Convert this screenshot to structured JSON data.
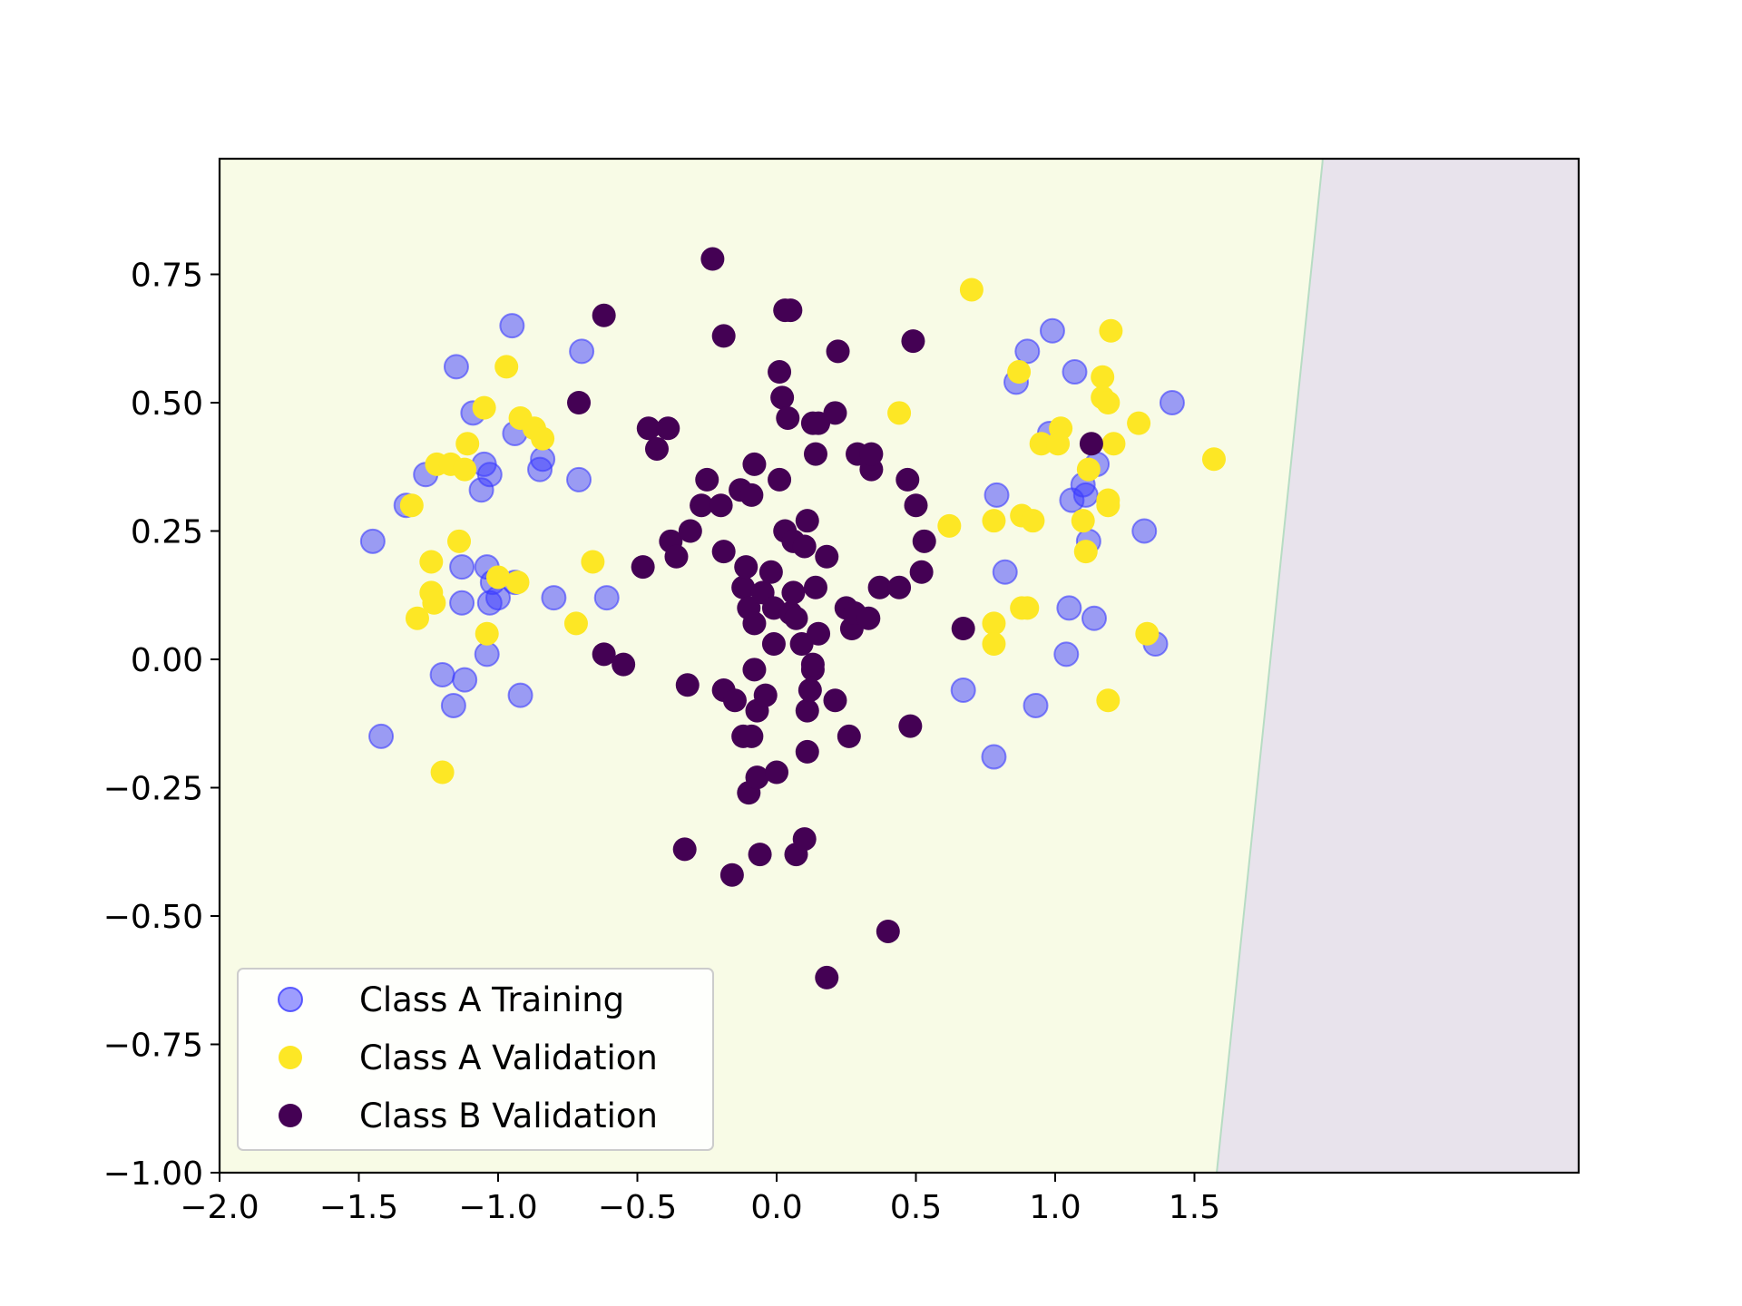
{
  "colors": {
    "class_a_training": "#3b3bff",
    "class_a_validation": "#fde725",
    "class_b_validation": "#440154",
    "region_a": "#f8fbe6",
    "region_b": "#e8e3ec",
    "boundary": "#b7dcc4"
  },
  "chart_data": {
    "type": "scatter",
    "title": "",
    "xlabel": "",
    "ylabel": "",
    "xlim": [
      -2.0,
      2.0
    ],
    "ylim": [
      -1.0,
      1.0
    ],
    "xticks": [
      -2.0,
      -1.5,
      -1.0,
      -0.5,
      0.0,
      0.5,
      1.0,
      1.5
    ],
    "xtick_labels": [
      "−2.0",
      "−1.5",
      "−1.0",
      "−0.5",
      "0.0",
      "0.5",
      "1.0",
      "1.5"
    ],
    "yticks": [
      0.75,
      0.5,
      0.25,
      0.0,
      -0.25,
      -0.5,
      -0.75,
      -1.0
    ],
    "ytick_labels": [
      "0.75",
      "0.50",
      "0.25",
      "0.00",
      "−0.25",
      "−0.50",
      "−0.75",
      "−1.00"
    ],
    "grid": false,
    "legend_position": "lower-left",
    "decision_boundary": {
      "points": [
        [
          1.96,
          0.97
        ],
        [
          1.58,
          -1.0
        ]
      ]
    },
    "series": [
      {
        "name": "Class A Training",
        "color": "#3b3bff",
        "marker": "circle-translucent",
        "points": [
          [
            -1.45,
            0.23
          ],
          [
            -1.42,
            -0.15
          ],
          [
            -1.33,
            0.3
          ],
          [
            -1.26,
            0.36
          ],
          [
            -1.2,
            -0.03
          ],
          [
            -1.16,
            -0.09
          ],
          [
            -1.15,
            0.57
          ],
          [
            -1.13,
            0.11
          ],
          [
            -1.13,
            0.18
          ],
          [
            -1.12,
            -0.04
          ],
          [
            -1.09,
            0.48
          ],
          [
            -1.06,
            0.33
          ],
          [
            -1.05,
            0.38
          ],
          [
            -1.04,
            0.18
          ],
          [
            -1.04,
            0.01
          ],
          [
            -1.03,
            0.11
          ],
          [
            -1.03,
            0.36
          ],
          [
            -1.02,
            0.15
          ],
          [
            -1.0,
            0.12
          ],
          [
            -0.95,
            0.65
          ],
          [
            -0.94,
            0.44
          ],
          [
            -0.94,
            0.15
          ],
          [
            -0.92,
            -0.07
          ],
          [
            -0.85,
            0.37
          ],
          [
            -0.84,
            0.39
          ],
          [
            -0.8,
            0.12
          ],
          [
            -0.71,
            0.35
          ],
          [
            -0.7,
            0.6
          ],
          [
            -0.61,
            0.12
          ],
          [
            0.67,
            -0.06
          ],
          [
            0.78,
            -0.19
          ],
          [
            0.79,
            0.32
          ],
          [
            0.82,
            0.17
          ],
          [
            0.86,
            0.54
          ],
          [
            0.9,
            0.6
          ],
          [
            0.93,
            -0.09
          ],
          [
            0.98,
            0.44
          ],
          [
            0.99,
            0.64
          ],
          [
            1.04,
            0.01
          ],
          [
            1.05,
            0.1
          ],
          [
            1.06,
            0.31
          ],
          [
            1.07,
            0.56
          ],
          [
            1.1,
            0.34
          ],
          [
            1.11,
            0.32
          ],
          [
            1.12,
            0.23
          ],
          [
            1.14,
            0.08
          ],
          [
            1.15,
            0.38
          ],
          [
            1.32,
            0.25
          ],
          [
            1.36,
            0.03
          ],
          [
            1.42,
            0.5
          ]
        ]
      },
      {
        "name": "Class A Validation",
        "color": "#fde725",
        "marker": "circle",
        "points": [
          [
            -1.31,
            0.3
          ],
          [
            -1.29,
            0.08
          ],
          [
            -1.24,
            0.19
          ],
          [
            -1.24,
            0.13
          ],
          [
            -1.23,
            0.11
          ],
          [
            -1.22,
            0.38
          ],
          [
            -1.2,
            -0.22
          ],
          [
            -1.17,
            0.38
          ],
          [
            -1.14,
            0.23
          ],
          [
            -1.12,
            0.37
          ],
          [
            -1.11,
            0.42
          ],
          [
            -1.05,
            0.49
          ],
          [
            -1.04,
            0.05
          ],
          [
            -1.0,
            0.16
          ],
          [
            -0.97,
            0.57
          ],
          [
            -0.93,
            0.15
          ],
          [
            -0.92,
            0.47
          ],
          [
            -0.87,
            0.45
          ],
          [
            -0.84,
            0.43
          ],
          [
            -0.72,
            0.07
          ],
          [
            -0.66,
            0.19
          ],
          [
            0.44,
            0.48
          ],
          [
            0.62,
            0.26
          ],
          [
            0.7,
            0.72
          ],
          [
            0.78,
            0.27
          ],
          [
            0.78,
            0.07
          ],
          [
            0.78,
            0.03
          ],
          [
            0.87,
            0.56
          ],
          [
            0.88,
            0.28
          ],
          [
            0.88,
            0.1
          ],
          [
            0.9,
            0.1
          ],
          [
            0.92,
            0.27
          ],
          [
            0.95,
            0.42
          ],
          [
            1.01,
            0.42
          ],
          [
            1.02,
            0.45
          ],
          [
            1.1,
            0.27
          ],
          [
            1.11,
            0.21
          ],
          [
            1.12,
            0.37
          ],
          [
            1.17,
            0.55
          ],
          [
            1.17,
            0.51
          ],
          [
            1.19,
            0.5
          ],
          [
            1.19,
            0.31
          ],
          [
            1.19,
            0.3
          ],
          [
            1.19,
            -0.08
          ],
          [
            1.2,
            0.64
          ],
          [
            1.21,
            0.42
          ],
          [
            1.3,
            0.46
          ],
          [
            1.33,
            0.05
          ],
          [
            1.57,
            0.39
          ]
        ]
      },
      {
        "name": "Class B Validation",
        "color": "#440154",
        "marker": "circle",
        "points": [
          [
            -0.71,
            0.5
          ],
          [
            -0.62,
            0.67
          ],
          [
            -0.62,
            0.01
          ],
          [
            -0.55,
            -0.01
          ],
          [
            -0.48,
            0.18
          ],
          [
            -0.46,
            0.45
          ],
          [
            -0.43,
            0.41
          ],
          [
            -0.39,
            0.45
          ],
          [
            -0.38,
            0.23
          ],
          [
            -0.36,
            0.2
          ],
          [
            -0.33,
            -0.37
          ],
          [
            -0.32,
            -0.05
          ],
          [
            -0.31,
            0.25
          ],
          [
            -0.27,
            0.3
          ],
          [
            -0.25,
            0.35
          ],
          [
            -0.23,
            0.78
          ],
          [
            -0.2,
            0.3
          ],
          [
            -0.19,
            0.63
          ],
          [
            -0.19,
            0.21
          ],
          [
            -0.19,
            -0.06
          ],
          [
            -0.16,
            -0.42
          ],
          [
            -0.15,
            -0.08
          ],
          [
            -0.13,
            0.33
          ],
          [
            -0.12,
            0.14
          ],
          [
            -0.12,
            -0.15
          ],
          [
            -0.11,
            0.18
          ],
          [
            -0.1,
            -0.26
          ],
          [
            -0.1,
            0.1
          ],
          [
            -0.09,
            0.32
          ],
          [
            -0.09,
            -0.15
          ],
          [
            -0.08,
            0.07
          ],
          [
            -0.08,
            0.38
          ],
          [
            -0.08,
            -0.02
          ],
          [
            -0.07,
            -0.23
          ],
          [
            -0.07,
            -0.1
          ],
          [
            -0.06,
            -0.38
          ],
          [
            -0.05,
            0.13
          ],
          [
            -0.04,
            -0.07
          ],
          [
            -0.02,
            0.17
          ],
          [
            -0.01,
            0.03
          ],
          [
            -0.01,
            0.1
          ],
          [
            0.0,
            -0.22
          ],
          [
            0.01,
            0.56
          ],
          [
            0.01,
            0.35
          ],
          [
            0.02,
            0.51
          ],
          [
            0.03,
            0.68
          ],
          [
            0.03,
            0.25
          ],
          [
            0.04,
            0.47
          ],
          [
            0.05,
            0.68
          ],
          [
            0.05,
            0.09
          ],
          [
            0.06,
            0.13
          ],
          [
            0.06,
            0.23
          ],
          [
            0.07,
            0.08
          ],
          [
            0.07,
            -0.38
          ],
          [
            0.09,
            0.03
          ],
          [
            0.1,
            0.22
          ],
          [
            0.1,
            -0.35
          ],
          [
            0.11,
            -0.1
          ],
          [
            0.11,
            0.27
          ],
          [
            0.11,
            -0.18
          ],
          [
            0.12,
            -0.06
          ],
          [
            0.13,
            -0.02
          ],
          [
            0.13,
            -0.01
          ],
          [
            0.13,
            0.46
          ],
          [
            0.14,
            0.4
          ],
          [
            0.14,
            0.14
          ],
          [
            0.15,
            0.05
          ],
          [
            0.15,
            0.46
          ],
          [
            0.18,
            0.2
          ],
          [
            0.18,
            -0.62
          ],
          [
            0.21,
            0.48
          ],
          [
            0.21,
            -0.08
          ],
          [
            0.22,
            0.6
          ],
          [
            0.25,
            0.1
          ],
          [
            0.26,
            -0.15
          ],
          [
            0.27,
            0.06
          ],
          [
            0.28,
            0.09
          ],
          [
            0.29,
            0.4
          ],
          [
            0.33,
            0.08
          ],
          [
            0.34,
            0.37
          ],
          [
            0.34,
            0.4
          ],
          [
            0.37,
            0.14
          ],
          [
            0.4,
            -0.53
          ],
          [
            0.44,
            0.14
          ],
          [
            0.47,
            0.35
          ],
          [
            0.48,
            -0.13
          ],
          [
            0.49,
            0.62
          ],
          [
            0.5,
            0.3
          ],
          [
            0.52,
            0.17
          ],
          [
            0.53,
            0.23
          ],
          [
            0.67,
            0.06
          ],
          [
            1.13,
            0.42
          ]
        ]
      }
    ]
  }
}
